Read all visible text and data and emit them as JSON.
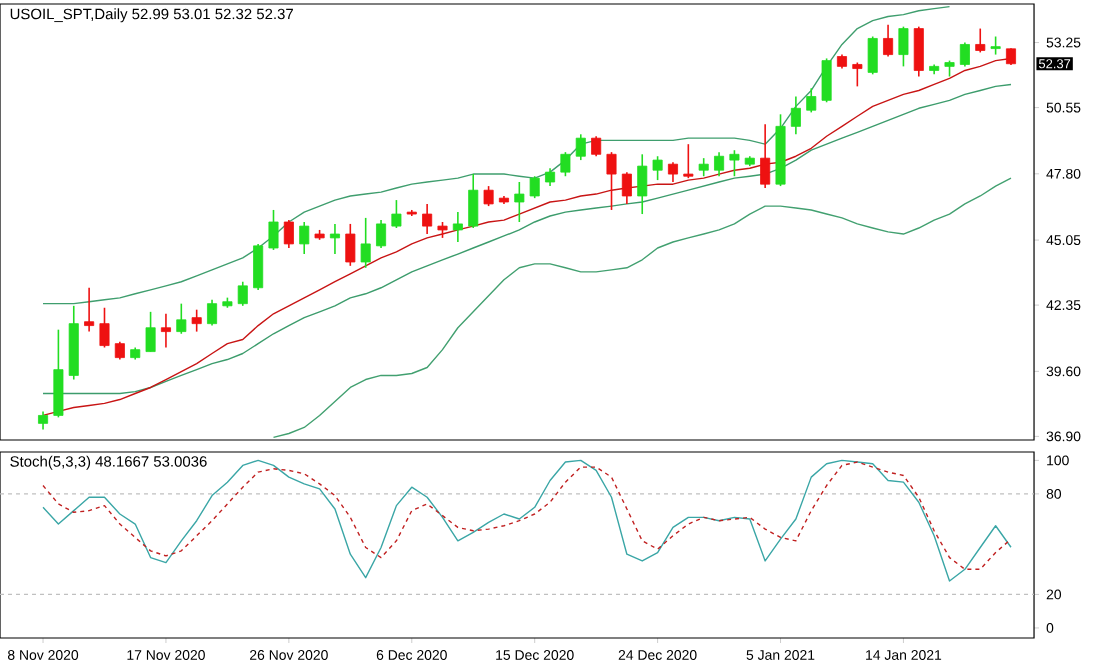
{
  "chart_data": [
    {
      "type": "candlestick",
      "title": "USOIL_SPT,Daily  52.99 53.01 52.32 52.37",
      "categories": [
        null,
        null,
        null,
        null,
        null,
        null,
        null,
        null,
        null,
        null,
        null,
        null,
        null,
        null,
        null,
        null,
        null,
        null,
        null,
        null,
        null,
        null,
        null,
        null,
        null,
        null,
        null,
        null,
        null,
        null,
        null,
        null,
        null,
        null,
        null,
        null,
        null,
        null,
        null,
        null,
        null,
        null,
        null,
        null,
        null,
        null,
        null,
        null,
        null,
        null,
        null,
        null,
        null,
        null,
        null,
        null,
        null,
        null,
        null,
        null,
        null,
        null,
        null,
        null
      ],
      "ohlc": [
        [
          37.44,
          37.93,
          37.19,
          37.77
        ],
        [
          37.77,
          41.33,
          37.69,
          39.67
        ],
        [
          39.43,
          42.32,
          39.26,
          41.58
        ],
        [
          41.66,
          43.07,
          41.25,
          41.5
        ],
        [
          41.58,
          42.24,
          40.59,
          40.67
        ],
        [
          40.75,
          40.83,
          40.09,
          40.17
        ],
        [
          40.17,
          40.59,
          40.09,
          40.5
        ],
        [
          40.42,
          42.07,
          40.42,
          41.41
        ],
        [
          41.41,
          41.99,
          40.59,
          41.25
        ],
        [
          41.25,
          42.41,
          41.16,
          41.74
        ],
        [
          41.83,
          42.16,
          41.25,
          41.58
        ],
        [
          41.58,
          42.57,
          41.5,
          42.41
        ],
        [
          42.32,
          42.66,
          42.24,
          42.49
        ],
        [
          42.41,
          43.32,
          42.32,
          43.15
        ],
        [
          43.07,
          44.89,
          42.98,
          44.81
        ],
        [
          44.72,
          46.3,
          44.64,
          45.8
        ],
        [
          45.8,
          45.88,
          44.72,
          44.89
        ],
        [
          44.89,
          45.8,
          44.47,
          45.63
        ],
        [
          45.3,
          45.47,
          45.06,
          45.14
        ],
        [
          45.14,
          45.72,
          44.47,
          45.3
        ],
        [
          45.3,
          45.72,
          43.98,
          44.14
        ],
        [
          44.14,
          45.97,
          43.9,
          44.89
        ],
        [
          44.81,
          45.88,
          44.72,
          45.72
        ],
        [
          45.63,
          46.71,
          45.55,
          46.13
        ],
        [
          46.21,
          46.3,
          46.05,
          46.13
        ],
        [
          46.13,
          46.55,
          45.3,
          45.63
        ],
        [
          45.63,
          45.8,
          45.14,
          45.47
        ],
        [
          45.47,
          46.21,
          44.97,
          45.72
        ],
        [
          45.63,
          47.79,
          45.55,
          47.12
        ],
        [
          47.12,
          47.29,
          46.46,
          46.55
        ],
        [
          46.79,
          46.88,
          46.55,
          46.63
        ],
        [
          46.63,
          47.46,
          45.8,
          46.96
        ],
        [
          46.88,
          47.7,
          46.79,
          47.62
        ],
        [
          47.46,
          48.03,
          47.29,
          47.87
        ],
        [
          47.87,
          48.7,
          47.7,
          48.61
        ],
        [
          48.53,
          49.44,
          48.37,
          49.28
        ],
        [
          49.28,
          49.36,
          48.53,
          48.61
        ],
        [
          48.61,
          48.7,
          46.3,
          47.79
        ],
        [
          47.79,
          47.87,
          46.55,
          46.88
        ],
        [
          46.88,
          48.61,
          46.13,
          48.12
        ],
        [
          47.95,
          48.53,
          47.54,
          48.37
        ],
        [
          48.2,
          48.28,
          47.46,
          47.79
        ],
        [
          47.79,
          49.03,
          47.62,
          47.7
        ],
        [
          47.95,
          48.45,
          47.7,
          48.2
        ],
        [
          47.95,
          48.7,
          47.7,
          48.53
        ],
        [
          48.37,
          48.78,
          47.7,
          48.61
        ],
        [
          48.2,
          48.53,
          48.12,
          48.45
        ],
        [
          48.45,
          49.86,
          47.21,
          47.37
        ],
        [
          47.37,
          50.27,
          47.29,
          49.77
        ],
        [
          49.77,
          51.01,
          49.44,
          50.52
        ],
        [
          50.44,
          51.35,
          50.35,
          51.01
        ],
        [
          50.85,
          52.59,
          50.77,
          52.5
        ],
        [
          52.67,
          52.75,
          52.17,
          52.26
        ],
        [
          52.34,
          52.42,
          51.43,
          52.17
        ],
        [
          52.01,
          53.5,
          51.93,
          53.42
        ],
        [
          53.42,
          53.99,
          52.67,
          52.75
        ],
        [
          52.75,
          53.91,
          52.26,
          53.83
        ],
        [
          53.83,
          53.91,
          51.84,
          52.09
        ],
        [
          52.09,
          52.34,
          51.93,
          52.26
        ],
        [
          52.26,
          52.5,
          51.84,
          52.42
        ],
        [
          52.34,
          53.25,
          52.26,
          53.17
        ],
        [
          53.17,
          53.83,
          52.84,
          52.92
        ],
        [
          53.0,
          53.5,
          52.75,
          53.08
        ],
        [
          52.99,
          53.01,
          52.32,
          52.37
        ]
      ],
      "colors": [
        "#22dd22",
        "#22dd22",
        "#22dd22",
        "#ee1111",
        "#ee1111",
        "#ee1111",
        "#22dd22",
        "#22dd22",
        "#ee1111",
        "#22dd22",
        "#ee1111",
        "#22dd22",
        "#22dd22",
        "#22dd22",
        "#22dd22",
        "#22dd22",
        "#ee1111",
        "#22dd22",
        "#ee1111",
        "#22dd22",
        "#ee1111",
        "#22dd22",
        "#22dd22",
        "#22dd22",
        "#ee1111",
        "#ee1111",
        "#ee1111",
        "#22dd22",
        "#22dd22",
        "#ee1111",
        "#ee1111",
        "#22dd22",
        "#22dd22",
        "#22dd22",
        "#22dd22",
        "#22dd22",
        "#ee1111",
        "#ee1111",
        "#ee1111",
        "#22dd22",
        "#22dd22",
        "#ee1111",
        "#ee1111",
        "#22dd22",
        "#22dd22",
        "#22dd22",
        "#22dd22",
        "#ee1111",
        "#22dd22",
        "#22dd22",
        "#22dd22",
        "#22dd22",
        "#ee1111",
        "#ee1111",
        "#22dd22",
        "#ee1111",
        "#22dd22",
        "#ee1111",
        "#22dd22",
        "#22dd22",
        "#22dd22",
        "#ee1111",
        "#22dd22",
        "#ee1111"
      ],
      "series": [
        {
          "type": "line",
          "color": "#3f9e6e",
          "values": [
            42.41,
            42.41,
            42.41,
            42.49,
            42.57,
            42.65,
            42.82,
            42.98,
            43.15,
            43.32,
            43.56,
            43.81,
            44.06,
            44.31,
            44.72,
            45.22,
            45.8,
            46.21,
            46.46,
            46.71,
            46.88,
            46.96,
            47.04,
            47.21,
            47.37,
            47.46,
            47.54,
            47.62,
            47.79,
            47.79,
            47.79,
            47.7,
            47.62,
            47.87,
            48.37,
            49.03,
            49.19,
            49.19,
            49.19,
            49.19,
            49.19,
            49.19,
            49.28,
            49.28,
            49.28,
            49.28,
            49.19,
            49.03,
            49.69,
            50.6,
            51.26,
            52.26,
            53.17,
            53.83,
            54.16,
            54.33,
            54.41,
            54.57,
            54.66,
            54.74,
            null,
            null,
            null,
            null
          ]
        },
        {
          "type": "line",
          "color": "#3c9c6c",
          "values": [
            38.68,
            38.68,
            38.68,
            38.68,
            38.68,
            38.68,
            38.76,
            38.93,
            39.18,
            39.43,
            39.67,
            39.92,
            40.09,
            40.34,
            40.75,
            41.16,
            41.5,
            41.83,
            42.07,
            42.32,
            42.65,
            42.82,
            43.07,
            43.4,
            43.73,
            43.98,
            44.23,
            44.47,
            44.72,
            44.97,
            45.22,
            45.47,
            45.8,
            46.05,
            46.21,
            46.3,
            46.38,
            46.46,
            46.55,
            46.63,
            46.79,
            46.96,
            47.12,
            47.29,
            47.46,
            47.62,
            47.7,
            47.79,
            48.03,
            48.37,
            48.78,
            49.03,
            49.28,
            49.52,
            49.77,
            50.02,
            50.27,
            50.52,
            50.68,
            50.85,
            51.1,
            51.26,
            51.43,
            51.51
          ]
        },
        {
          "type": "line",
          "color": "#42a070",
          "values": [
            null,
            null,
            null,
            null,
            null,
            null,
            null,
            null,
            null,
            null,
            null,
            null,
            null,
            null,
            null,
            36.86,
            37.02,
            37.27,
            37.77,
            38.35,
            38.93,
            39.26,
            39.43,
            39.43,
            39.51,
            39.76,
            40.5,
            41.41,
            42.07,
            42.74,
            43.4,
            43.9,
            44.06,
            44.06,
            43.9,
            43.73,
            43.73,
            43.81,
            43.9,
            44.23,
            44.72,
            44.97,
            45.14,
            45.3,
            45.47,
            45.72,
            46.13,
            46.46,
            46.46,
            46.38,
            46.3,
            46.13,
            45.97,
            45.72,
            45.55,
            45.39,
            45.3,
            45.55,
            45.88,
            46.13,
            46.55,
            46.88,
            47.29,
            47.62
          ]
        },
        {
          "type": "line",
          "color": "#c81414",
          "values": [
            37.77,
            37.94,
            38.1,
            38.18,
            38.27,
            38.43,
            38.68,
            38.93,
            39.26,
            39.59,
            39.92,
            40.34,
            40.75,
            40.92,
            41.5,
            41.99,
            42.32,
            42.65,
            42.98,
            43.32,
            43.65,
            43.98,
            44.31,
            44.56,
            44.89,
            45.14,
            45.3,
            45.47,
            45.63,
            45.8,
            45.88,
            46.13,
            46.38,
            46.63,
            46.71,
            46.88,
            46.96,
            47.12,
            47.21,
            47.29,
            47.37,
            47.37,
            47.54,
            47.62,
            47.79,
            47.95,
            48.03,
            48.2,
            48.28,
            48.53,
            48.86,
            49.36,
            49.77,
            50.19,
            50.6,
            50.85,
            51.1,
            51.26,
            51.51,
            51.76,
            52.09,
            52.26,
            52.5,
            52.59
          ]
        }
      ],
      "ylim": [
        36.75,
        54.85
      ],
      "yticks": [
        {
          "value": 36.9,
          "label": "36.90"
        },
        {
          "value": 39.6,
          "label": "39.60"
        },
        42.35,
        45.05,
        {
          "value": 47.8,
          "label": "47.80"
        },
        50.55,
        53.25
      ],
      "annotations": [
        "52.37"
      ],
      "tick_labels": "y"
    },
    {
      "type": "line",
      "title": "Stoch(5,3,3) 48.1667 53.0036",
      "categories": [
        "8 Nov 2020",
        null,
        null,
        null,
        null,
        null,
        null,
        null,
        "17 Nov 2020",
        null,
        null,
        null,
        null,
        null,
        null,
        null,
        "26 Nov 2020",
        null,
        null,
        null,
        null,
        null,
        null,
        null,
        "6 Dec 2020",
        null,
        null,
        null,
        null,
        null,
        null,
        null,
        "15 Dec 2020",
        null,
        null,
        null,
        null,
        null,
        null,
        null,
        "24 Dec 2020",
        null,
        null,
        null,
        null,
        null,
        null,
        null,
        "5 Jan 2021",
        null,
        null,
        null,
        null,
        null,
        null,
        null,
        "14 Jan 2021",
        null,
        null,
        null,
        null,
        null,
        null,
        null
      ],
      "series": [
        {
          "color": "#3aa6a6",
          "line_style": "solid",
          "values": [
            72,
            62,
            70,
            78,
            78,
            68,
            62,
            42,
            39,
            52,
            64,
            79,
            87,
            97,
            100,
            97,
            90,
            86,
            83,
            71,
            44,
            30,
            48,
            73,
            84,
            78,
            66,
            52,
            57,
            63,
            68,
            65,
            72,
            88,
            99,
            100,
            94,
            78,
            44,
            40,
            45,
            60,
            66,
            66,
            64,
            66,
            65,
            40,
            53,
            65,
            90,
            98,
            100,
            99,
            98,
            88,
            87,
            75,
            55,
            28,
            35,
            48,
            61,
            48.1667
          ]
        },
        {
          "color": "#c02020",
          "line_style": "dashed",
          "values": [
            85,
            74,
            69,
            70,
            73,
            62,
            54,
            46,
            43,
            46,
            55,
            64,
            74,
            84,
            93,
            95,
            94,
            92,
            86,
            79,
            66,
            48,
            42,
            52,
            70,
            74,
            67,
            60,
            58,
            59,
            61,
            64,
            68,
            75,
            87,
            96,
            96,
            90,
            71,
            52,
            47,
            55,
            62,
            66,
            64,
            65,
            66,
            59,
            54,
            52,
            70,
            85,
            97,
            99,
            96,
            93,
            91,
            78,
            58,
            42,
            35,
            35,
            45,
            53.0036
          ]
        }
      ],
      "ylim": [
        -6,
        105
      ],
      "yticks": [
        0,
        20,
        80,
        100
      ],
      "ref_lines": [
        {
          "axis": "y",
          "value": 20,
          "color": "#c0c0c0",
          "line_style": "dashed"
        },
        {
          "axis": "y",
          "value": 80,
          "color": "#c0c0c0",
          "line_style": "dashed"
        }
      ]
    }
  ]
}
